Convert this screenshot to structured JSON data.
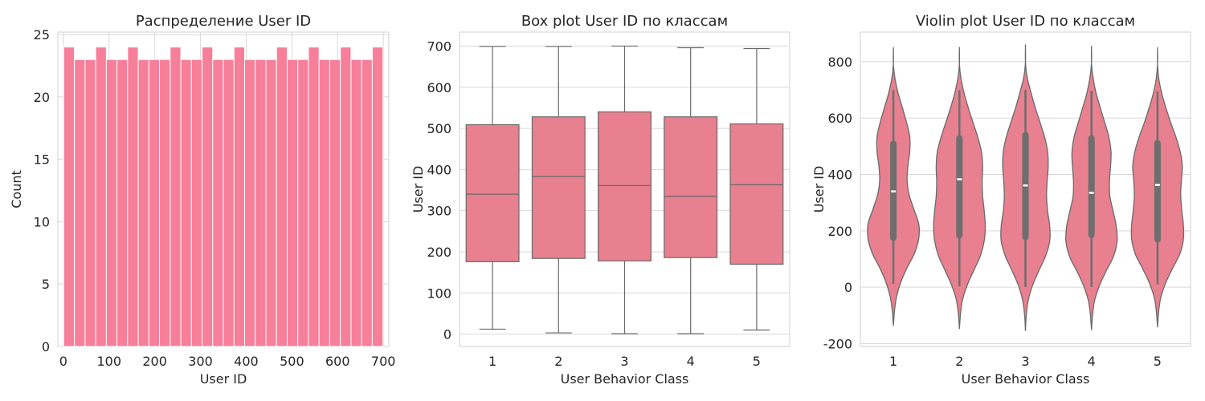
{
  "chart_data": [
    {
      "type": "bar",
      "title": "Распределение User ID",
      "xlabel": "User ID",
      "ylabel": "Count",
      "xlim": [
        -12,
        712
      ],
      "ylim": [
        0,
        25.2
      ],
      "xticks": [
        0,
        100,
        200,
        300,
        400,
        500,
        600,
        700
      ],
      "yticks": [
        0,
        5,
        10,
        15,
        20,
        25
      ],
      "grid": true,
      "bins": {
        "start": 1,
        "width": 23.27,
        "counts": [
          24,
          23,
          23,
          24,
          23,
          23,
          24,
          23,
          23,
          23,
          24,
          23,
          23,
          24,
          23,
          23,
          24,
          23,
          23,
          23,
          24,
          23,
          23,
          24,
          23,
          23,
          24,
          23,
          23,
          24
        ]
      },
      "color": "#f77f99"
    },
    {
      "type": "box",
      "title": "Box plot User ID по классам",
      "xlabel": "User Behavior Class",
      "ylabel": "User ID",
      "ylim": [
        -30,
        734
      ],
      "yticks": [
        0,
        100,
        200,
        300,
        400,
        500,
        600,
        700
      ],
      "categories": [
        "1",
        "2",
        "3",
        "4",
        "5"
      ],
      "grid": true,
      "color": "#e8808f",
      "boxes": [
        {
          "min": 12,
          "q1": 176,
          "median": 340,
          "q3": 509,
          "max": 699
        },
        {
          "min": 3,
          "q1": 184,
          "median": 383,
          "q3": 528,
          "max": 699
        },
        {
          "min": 1,
          "q1": 178,
          "median": 361,
          "q3": 540,
          "max": 700
        },
        {
          "min": 1,
          "q1": 186,
          "median": 335,
          "q3": 528,
          "max": 696
        },
        {
          "min": 10,
          "q1": 170,
          "median": 363,
          "q3": 511,
          "max": 694
        }
      ]
    },
    {
      "type": "violin",
      "title": "Violin plot User ID по классам",
      "xlabel": "User Behavior Class",
      "ylabel": "User ID",
      "ylim": [
        -210,
        905
      ],
      "yticks": [
        -200,
        0,
        200,
        400,
        600,
        800
      ],
      "categories": [
        "1",
        "2",
        "3",
        "4",
        "5"
      ],
      "grid": true,
      "color": "#e8808f",
      "violins": [
        {
          "lo": -137,
          "hi": 843,
          "min": 12,
          "q1": 176,
          "median": 340,
          "q3": 509,
          "max": 699,
          "density": [
            0.04,
            0.12,
            0.28,
            0.52,
            0.8,
            0.96,
            0.96,
            0.78,
            0.6,
            0.52,
            0.55,
            0.62,
            0.62,
            0.5,
            0.34,
            0.18,
            0.06,
            0.0
          ]
        },
        {
          "lo": -148,
          "hi": 844,
          "min": 3,
          "q1": 184,
          "median": 383,
          "q3": 528,
          "max": 699,
          "density": [
            0.04,
            0.12,
            0.3,
            0.55,
            0.8,
            0.94,
            0.98,
            0.94,
            0.88,
            0.86,
            0.88,
            0.84,
            0.7,
            0.52,
            0.34,
            0.18,
            0.06,
            0.0
          ]
        },
        {
          "lo": -155,
          "hi": 853,
          "min": 1,
          "q1": 178,
          "median": 361,
          "q3": 540,
          "max": 700,
          "density": [
            0.03,
            0.1,
            0.26,
            0.5,
            0.76,
            0.92,
            0.92,
            0.84,
            0.8,
            0.82,
            0.86,
            0.84,
            0.72,
            0.54,
            0.36,
            0.2,
            0.06,
            0.0
          ]
        },
        {
          "lo": -152,
          "hi": 848,
          "min": 1,
          "q1": 186,
          "median": 335,
          "q3": 528,
          "max": 696,
          "density": [
            0.04,
            0.12,
            0.3,
            0.56,
            0.84,
            0.97,
            0.94,
            0.82,
            0.7,
            0.68,
            0.72,
            0.74,
            0.66,
            0.5,
            0.33,
            0.17,
            0.06,
            0.0
          ]
        },
        {
          "lo": -142,
          "hi": 843,
          "min": 10,
          "q1": 170,
          "median": 363,
          "q3": 511,
          "max": 694,
          "density": [
            0.04,
            0.12,
            0.3,
            0.56,
            0.84,
            0.98,
            0.98,
            0.92,
            0.88,
            0.9,
            0.94,
            0.86,
            0.7,
            0.5,
            0.32,
            0.16,
            0.05,
            0.0
          ]
        }
      ]
    }
  ]
}
